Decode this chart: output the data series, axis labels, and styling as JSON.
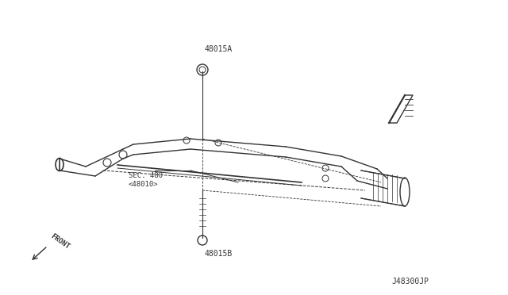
{
  "bg_color": "#ffffff",
  "line_color": "#333333",
  "label_48015A": "48015A",
  "label_48015B": "48015B",
  "label_sec": "SEC. 480",
  "label_sec2": "<48010>",
  "label_front": "FRONT",
  "label_code": "J48300JP",
  "figsize": [
    6.4,
    3.72
  ],
  "dpi": 100
}
